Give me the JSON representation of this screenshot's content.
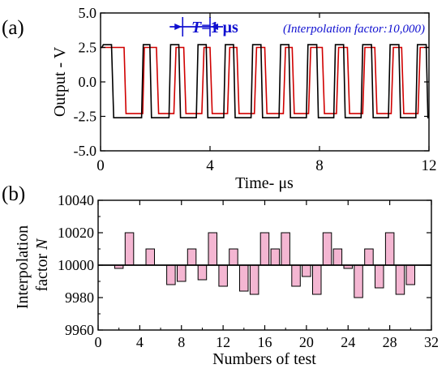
{
  "chart_data": [
    {
      "type": "line",
      "panel_label": "(a)",
      "xlabel": "Time- μs",
      "ylabel": "Output - V",
      "xlim": [
        0,
        12
      ],
      "ylim": [
        -5.0,
        5.0
      ],
      "xticks": [
        0,
        4,
        8,
        12
      ],
      "yticks": [
        -5.0,
        -2.5,
        0.0,
        2.5,
        5.0
      ],
      "ytick_labels": [
        "-5.0",
        "-2.5",
        "0.0",
        "2.5",
        "5.0"
      ],
      "period_annotation": {
        "prefix": "T",
        "text": "=1 μs",
        "x_from": 3.0,
        "x_to": 4.0
      },
      "inset_text": "(Interpolation factor:10,000)",
      "series": [
        {
          "color": "#d00000",
          "x": [
            0.0,
            0.05,
            0.12,
            0.86,
            0.93,
            1.54,
            1.6,
            2.04,
            2.12,
            2.68,
            2.76,
            3.04,
            3.12,
            3.7,
            3.78,
            4.0,
            4.08,
            4.64,
            4.72,
            4.98,
            5.06,
            5.62,
            5.7,
            6.0,
            6.08,
            6.68,
            6.76,
            7.0,
            7.08,
            7.6,
            7.68,
            8.1,
            8.18,
            8.62,
            8.7,
            9.02,
            9.1,
            9.58,
            9.66,
            10.02,
            10.1,
            10.62,
            10.7,
            11.0,
            11.08,
            11.6,
            11.68,
            12.0
          ],
          "y": [
            2.5,
            2.5,
            2.5,
            2.5,
            -2.3,
            -2.3,
            2.5,
            2.5,
            -2.3,
            -2.3,
            2.5,
            2.5,
            -2.3,
            -2.3,
            2.5,
            2.5,
            -2.3,
            -2.3,
            2.5,
            2.5,
            -2.3,
            -2.3,
            2.5,
            2.5,
            -2.3,
            -2.3,
            2.5,
            2.5,
            -2.3,
            -2.3,
            2.5,
            2.5,
            -2.3,
            -2.3,
            2.5,
            2.5,
            -2.3,
            -2.3,
            2.5,
            2.5,
            -2.3,
            -2.3,
            2.5,
            2.5,
            -2.3,
            -2.3,
            2.5,
            2.5
          ]
        },
        {
          "color": "#000000",
          "x": [
            0.0,
            0.05,
            0.1,
            0.4,
            0.48,
            1.5,
            1.56,
            1.8,
            1.86,
            2.5,
            2.56,
            2.86,
            2.92,
            3.5,
            3.56,
            3.86,
            3.92,
            4.5,
            4.56,
            4.86,
            4.92,
            5.5,
            5.56,
            5.86,
            5.92,
            6.52,
            6.58,
            6.88,
            6.94,
            7.52,
            7.58,
            7.9,
            7.96,
            8.52,
            8.58,
            8.88,
            8.94,
            9.52,
            9.58,
            9.9,
            9.96,
            10.52,
            10.58,
            10.9,
            10.96,
            11.52,
            11.58,
            11.9,
            11.96,
            12.0
          ],
          "y": [
            2.5,
            2.5,
            2.7,
            2.7,
            -2.6,
            -2.6,
            2.7,
            2.7,
            -2.6,
            -2.6,
            2.7,
            2.7,
            -2.6,
            -2.6,
            2.7,
            2.7,
            -2.6,
            -2.6,
            2.7,
            2.7,
            -2.6,
            -2.6,
            2.7,
            2.7,
            -2.6,
            -2.6,
            2.7,
            2.7,
            -2.6,
            -2.6,
            2.7,
            2.7,
            -2.6,
            -2.6,
            2.7,
            2.7,
            -2.6,
            -2.6,
            2.7,
            2.7,
            -2.6,
            -2.6,
            2.7,
            2.7,
            -2.6,
            -2.6,
            2.7,
            2.7,
            -2.6,
            -2.6
          ]
        }
      ]
    },
    {
      "type": "bar",
      "panel_label": "(b)",
      "xlabel": "Numbers of test",
      "ylabel_line1": "Interpolation",
      "ylabel_line2_prefix": "factor",
      "ylabel_line2_var": "N",
      "xlim": [
        0,
        32
      ],
      "ylim": [
        9960,
        10040
      ],
      "baseline": 10000,
      "xticks": [
        0,
        4,
        8,
        12,
        16,
        20,
        24,
        28,
        32
      ],
      "yticks": [
        9960,
        9980,
        10000,
        10020,
        10040
      ],
      "bar_color": "#f4b6d2",
      "x": [
        2,
        3,
        5,
        7,
        8,
        9,
        10,
        11,
        12,
        13,
        14,
        15,
        16,
        17,
        18,
        19,
        20,
        21,
        22,
        23,
        24,
        25,
        26,
        27,
        28,
        29,
        30
      ],
      "values": [
        9998,
        10020,
        10010,
        9988,
        9990,
        10010,
        9991,
        10020,
        9987,
        10010,
        9984,
        9982,
        10020,
        10010,
        10020,
        9987,
        9993,
        9982,
        10020,
        10010,
        9998,
        9980,
        10010,
        9986,
        10020,
        9982,
        9988
      ]
    }
  ]
}
